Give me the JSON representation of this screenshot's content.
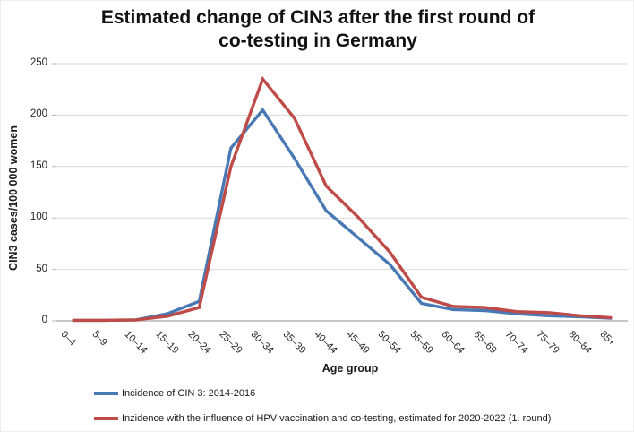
{
  "chart_data": {
    "type": "line",
    "title": "Estimated change of CIN3 after the first round of co-testing in Germany",
    "xlabel": "Age group",
    "ylabel": "CIN3  cases/100 000 women",
    "ylim": [
      0,
      250
    ],
    "ytick_interval": 50,
    "yticks": [
      0,
      50,
      100,
      150,
      200,
      250
    ],
    "grid": true,
    "legend_position": "bottom-left",
    "categories": [
      "0–4",
      "5–9",
      "10–14",
      "15–19",
      "20–24",
      "25–29",
      "30–34",
      "35–39",
      "40–44",
      "45–49",
      "50–54",
      "55–59",
      "60–64",
      "65–69",
      "70–74",
      "75–79",
      "80–84",
      "85+"
    ],
    "series": [
      {
        "name": "Incidence of CIN 3: 2014-2016",
        "color": "#4879b4",
        "values": [
          0.5,
          0.5,
          1,
          7,
          19,
          168,
          205,
          158,
          107,
          81,
          55,
          17,
          11,
          10,
          7,
          5,
          4,
          2.5
        ]
      },
      {
        "name": "Inzidence with the influence of HPV vaccination and  co-testing, estimated for 2020-2022 (1. round)",
        "color": "#be4b48",
        "values": [
          0.5,
          0.5,
          1,
          4.5,
          13,
          150,
          235,
          197,
          131,
          101,
          67,
          23,
          14,
          13,
          9,
          8,
          5,
          3
        ]
      }
    ],
    "colors": {
      "gridline": "#d9d9d9",
      "axis_line": "#b7b7b7",
      "text": "#262626"
    }
  }
}
